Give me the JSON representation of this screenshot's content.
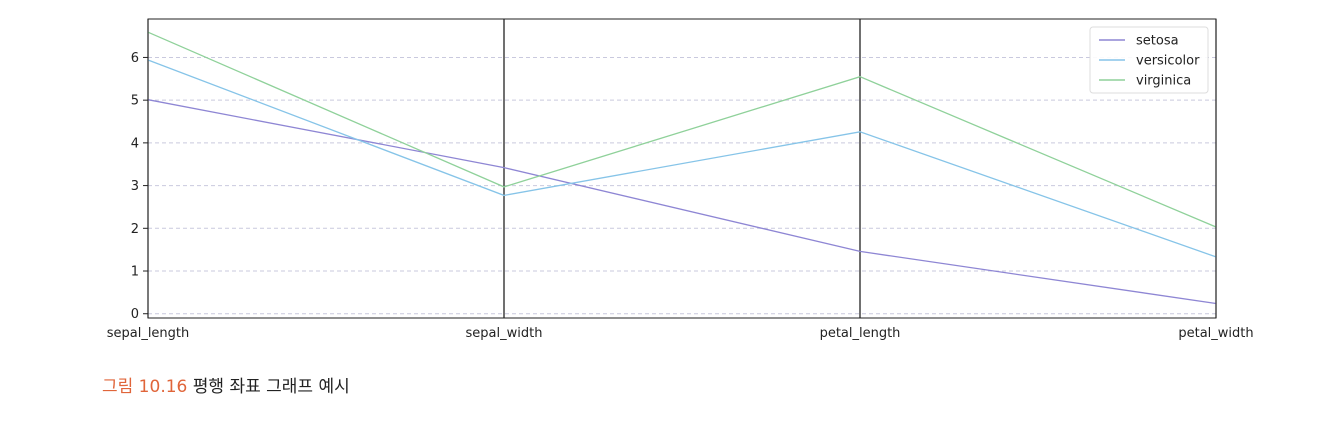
{
  "chart_data": {
    "type": "line",
    "title": "",
    "xlabel": "",
    "ylabel": "",
    "categories": [
      "sepal_length",
      "sepal_width",
      "petal_length",
      "petal_width"
    ],
    "ylim": [
      -0.1,
      6.9
    ],
    "yticks": [
      0,
      1,
      2,
      3,
      4,
      5,
      6
    ],
    "grid": true,
    "legend_position": "top-right",
    "series": [
      {
        "name": "setosa",
        "color": "#8e86d4",
        "values": [
          5.01,
          3.42,
          1.46,
          0.24
        ]
      },
      {
        "name": "versicolor",
        "color": "#86c4e8",
        "values": [
          5.94,
          2.77,
          4.26,
          1.33
        ]
      },
      {
        "name": "virginica",
        "color": "#8fd19a",
        "values": [
          6.59,
          2.97,
          5.55,
          2.03
        ]
      }
    ]
  },
  "caption": {
    "label": "그림 10.16",
    "text": "평행 좌표 그래프 예시"
  }
}
